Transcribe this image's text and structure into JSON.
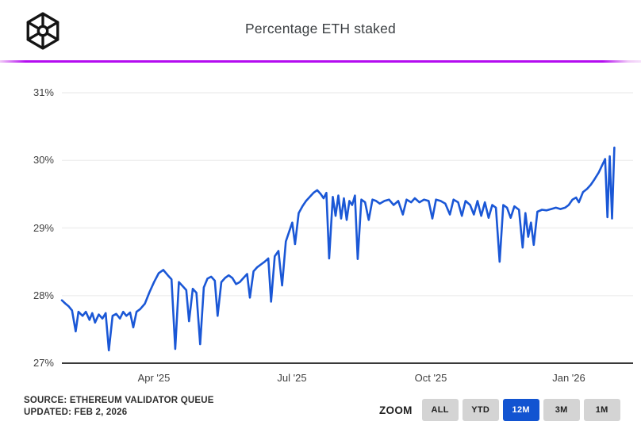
{
  "header": {
    "title": "Percentage ETH staked"
  },
  "chart_data": {
    "type": "line",
    "title": "Percentage ETH staked",
    "xlabel": "",
    "ylabel": "",
    "ylim": [
      27,
      31
    ],
    "y_ticks": [
      "31%",
      "30%",
      "29%",
      "28%",
      "27%"
    ],
    "y_tick_values": [
      31,
      30,
      29,
      28,
      27
    ],
    "x_ticks": [
      "Apr '25",
      "Jul '25",
      "Oct '25",
      "Jan '26"
    ],
    "x_tick_months": [
      2,
      5,
      8,
      11
    ],
    "x_range": [
      "Feb 2025",
      "Feb 2026"
    ],
    "grid": "horizontal-only",
    "legend": "none",
    "line_color": "#1a57d6",
    "axis_color": "#3a3a3a",
    "grid_color": "#efefef",
    "series": [
      {
        "name": "Percentage ETH staked (%)",
        "x_unit": "months since Feb 2025",
        "points": [
          [
            0.0,
            27.93
          ],
          [
            0.08,
            27.88
          ],
          [
            0.15,
            27.84
          ],
          [
            0.22,
            27.78
          ],
          [
            0.3,
            27.47
          ],
          [
            0.36,
            27.76
          ],
          [
            0.45,
            27.7
          ],
          [
            0.52,
            27.76
          ],
          [
            0.6,
            27.64
          ],
          [
            0.66,
            27.74
          ],
          [
            0.72,
            27.6
          ],
          [
            0.8,
            27.72
          ],
          [
            0.88,
            27.66
          ],
          [
            0.95,
            27.74
          ],
          [
            1.02,
            27.19
          ],
          [
            1.1,
            27.7
          ],
          [
            1.18,
            27.73
          ],
          [
            1.26,
            27.66
          ],
          [
            1.33,
            27.76
          ],
          [
            1.4,
            27.7
          ],
          [
            1.48,
            27.75
          ],
          [
            1.55,
            27.53
          ],
          [
            1.62,
            27.76
          ],
          [
            1.7,
            27.8
          ],
          [
            1.8,
            27.88
          ],
          [
            1.9,
            28.05
          ],
          [
            2.0,
            28.2
          ],
          [
            2.1,
            28.33
          ],
          [
            2.2,
            28.38
          ],
          [
            2.3,
            28.3
          ],
          [
            2.38,
            28.24
          ],
          [
            2.46,
            27.21
          ],
          [
            2.54,
            28.2
          ],
          [
            2.62,
            28.14
          ],
          [
            2.7,
            28.08
          ],
          [
            2.76,
            27.62
          ],
          [
            2.84,
            28.1
          ],
          [
            2.92,
            28.04
          ],
          [
            3.0,
            27.28
          ],
          [
            3.08,
            28.12
          ],
          [
            3.16,
            28.25
          ],
          [
            3.24,
            28.28
          ],
          [
            3.32,
            28.22
          ],
          [
            3.38,
            27.7
          ],
          [
            3.46,
            28.2
          ],
          [
            3.54,
            28.26
          ],
          [
            3.62,
            28.3
          ],
          [
            3.7,
            28.26
          ],
          [
            3.78,
            28.17
          ],
          [
            3.86,
            28.2
          ],
          [
            3.94,
            28.26
          ],
          [
            4.02,
            28.32
          ],
          [
            4.08,
            27.97
          ],
          [
            4.16,
            28.36
          ],
          [
            4.24,
            28.42
          ],
          [
            4.32,
            28.46
          ],
          [
            4.4,
            28.5
          ],
          [
            4.48,
            28.55
          ],
          [
            4.54,
            27.91
          ],
          [
            4.62,
            28.58
          ],
          [
            4.7,
            28.66
          ],
          [
            4.78,
            28.15
          ],
          [
            4.86,
            28.8
          ],
          [
            4.94,
            28.96
          ],
          [
            5.0,
            29.08
          ],
          [
            5.06,
            28.76
          ],
          [
            5.14,
            29.22
          ],
          [
            5.22,
            29.32
          ],
          [
            5.3,
            29.4
          ],
          [
            5.38,
            29.46
          ],
          [
            5.46,
            29.52
          ],
          [
            5.54,
            29.56
          ],
          [
            5.62,
            29.5
          ],
          [
            5.68,
            29.44
          ],
          [
            5.74,
            29.52
          ],
          [
            5.8,
            28.55
          ],
          [
            5.88,
            29.46
          ],
          [
            5.94,
            29.18
          ],
          [
            6.0,
            29.48
          ],
          [
            6.06,
            29.14
          ],
          [
            6.12,
            29.44
          ],
          [
            6.18,
            29.12
          ],
          [
            6.24,
            29.4
          ],
          [
            6.3,
            29.34
          ],
          [
            6.36,
            29.48
          ],
          [
            6.42,
            28.54
          ],
          [
            6.5,
            29.42
          ],
          [
            6.58,
            29.38
          ],
          [
            6.66,
            29.12
          ],
          [
            6.74,
            29.42
          ],
          [
            6.82,
            29.4
          ],
          [
            6.9,
            29.36
          ],
          [
            7.0,
            29.4
          ],
          [
            7.1,
            29.42
          ],
          [
            7.2,
            29.34
          ],
          [
            7.3,
            29.4
          ],
          [
            7.4,
            29.2
          ],
          [
            7.48,
            29.42
          ],
          [
            7.58,
            29.38
          ],
          [
            7.66,
            29.44
          ],
          [
            7.76,
            29.38
          ],
          [
            7.86,
            29.42
          ],
          [
            7.96,
            29.4
          ],
          [
            8.04,
            29.14
          ],
          [
            8.12,
            29.42
          ],
          [
            8.22,
            29.4
          ],
          [
            8.32,
            29.36
          ],
          [
            8.42,
            29.2
          ],
          [
            8.5,
            29.42
          ],
          [
            8.6,
            29.38
          ],
          [
            8.68,
            29.18
          ],
          [
            8.76,
            29.4
          ],
          [
            8.86,
            29.34
          ],
          [
            8.94,
            29.2
          ],
          [
            9.02,
            29.4
          ],
          [
            9.1,
            29.18
          ],
          [
            9.18,
            29.38
          ],
          [
            9.26,
            29.15
          ],
          [
            9.34,
            29.34
          ],
          [
            9.42,
            29.3
          ],
          [
            9.5,
            28.5
          ],
          [
            9.58,
            29.34
          ],
          [
            9.66,
            29.3
          ],
          [
            9.74,
            29.15
          ],
          [
            9.82,
            29.32
          ],
          [
            9.92,
            29.27
          ],
          [
            10.0,
            28.71
          ],
          [
            10.06,
            29.22
          ],
          [
            10.12,
            28.87
          ],
          [
            10.18,
            29.08
          ],
          [
            10.24,
            28.75
          ],
          [
            10.32,
            29.24
          ],
          [
            10.42,
            29.27
          ],
          [
            10.52,
            29.26
          ],
          [
            10.62,
            29.28
          ],
          [
            10.72,
            29.3
          ],
          [
            10.82,
            29.28
          ],
          [
            10.92,
            29.3
          ],
          [
            11.0,
            29.34
          ],
          [
            11.08,
            29.42
          ],
          [
            11.16,
            29.45
          ],
          [
            11.22,
            29.38
          ],
          [
            11.31,
            29.53
          ],
          [
            11.4,
            29.58
          ],
          [
            11.48,
            29.64
          ],
          [
            11.56,
            29.72
          ],
          [
            11.65,
            29.82
          ],
          [
            11.72,
            29.92
          ],
          [
            11.79,
            30.02
          ],
          [
            11.84,
            29.16
          ],
          [
            11.89,
            30.06
          ],
          [
            11.94,
            29.14
          ],
          [
            11.99,
            30.19
          ]
        ]
      }
    ]
  },
  "footer": {
    "source_line1": "SOURCE: ETHEREUM VALIDATOR QUEUE",
    "source_line2": "UPDATED: FEB 2, 2026",
    "zoom_label": "ZOOM",
    "zoom_buttons": [
      {
        "label": "ALL",
        "active": false
      },
      {
        "label": "YTD",
        "active": false
      },
      {
        "label": "12M",
        "active": true
      },
      {
        "label": "3M",
        "active": false
      },
      {
        "label": "1M",
        "active": false
      }
    ]
  },
  "colors": {
    "accent_divider": "#b40cf0",
    "line": "#1a57d6",
    "active_button_bg": "#1254d1",
    "button_bg": "#d4d4d4"
  }
}
